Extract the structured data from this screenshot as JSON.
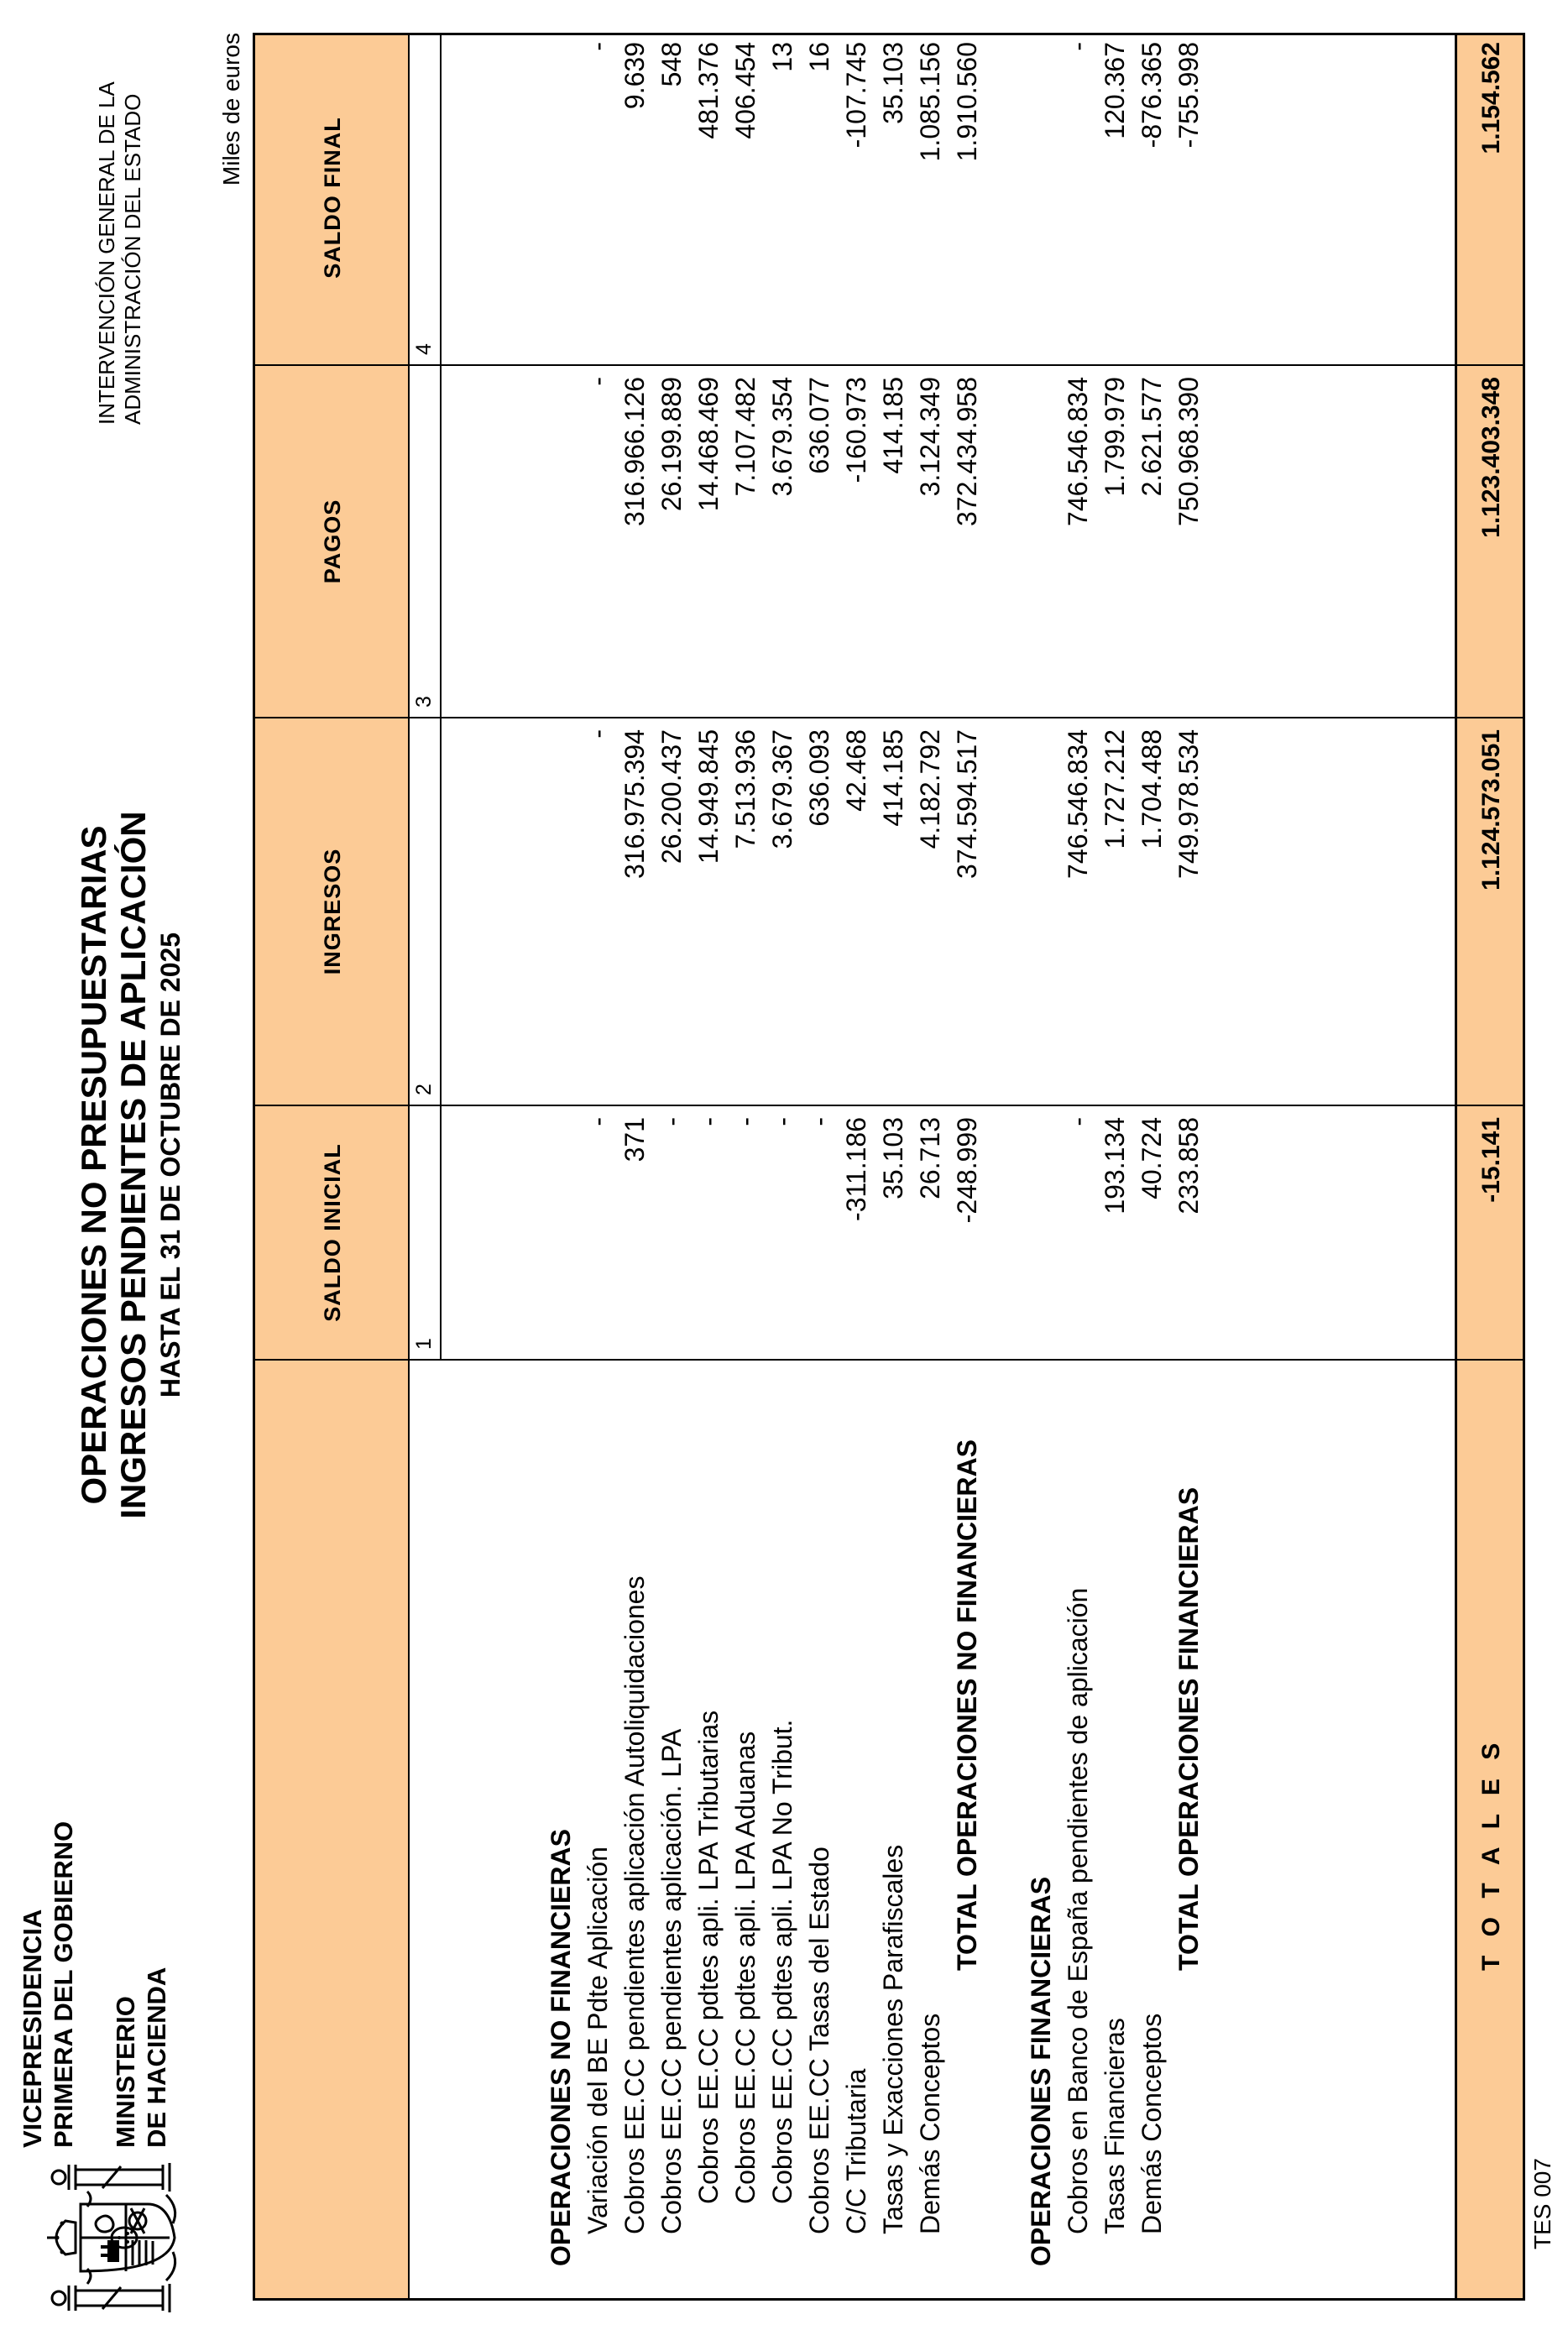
{
  "page": {
    "ministry": {
      "line1": "VICEPRESIDENCIA",
      "line2": "PRIMERA DEL GOBIERNO",
      "line3": "MINISTERIO",
      "line4": "DE HACIENDA"
    },
    "igae": {
      "line1": "INTERVENCIÓN GENERAL DE LA",
      "line2": "ADMINISTRACIÓN DEL ESTADO"
    },
    "title": {
      "line1": "OPERACIONES NO PRESUPUESTARIAS",
      "line2": "INGRESOS PENDIENTES DE APLICACIÓN",
      "line3": "HASTA EL 31 DE OCTUBRE DE 2025"
    },
    "units_note": "Miles de euros",
    "form_code": "TES 007"
  },
  "colors": {
    "header_fill": "#fccb96",
    "border": "#000000"
  },
  "table": {
    "columns": [
      {
        "label": "SALDO INICIAL",
        "num": "1"
      },
      {
        "label": "INGRESOS",
        "num": "2"
      },
      {
        "label": "PAGOS",
        "num": "3"
      },
      {
        "label": "SALDO FINAL",
        "num": "4"
      }
    ],
    "rows": [
      {
        "label": "OPERACIONES NO FINANCIERAS",
        "style": "section",
        "values": [
          "",
          "",
          "",
          ""
        ]
      },
      {
        "label": "Variación del BE Pdte Aplicación",
        "style": "item",
        "values": [
          "-",
          "-",
          "-",
          "-"
        ]
      },
      {
        "label": "Cobros EE.CC pendientes aplicación Autoliquidaciones",
        "style": "item",
        "values": [
          "371",
          "316.975.394",
          "316.966.126",
          "9.639"
        ]
      },
      {
        "label": "Cobros EE.CC pendientes aplicación. LPA",
        "style": "item",
        "values": [
          "-",
          "26.200.437",
          "26.199.889",
          "548"
        ]
      },
      {
        "label": "Cobros EE.CC pdtes apli. LPA Tributarias",
        "style": "sub",
        "values": [
          "-",
          "14.949.845",
          "14.468.469",
          "481.376"
        ]
      },
      {
        "label": "Cobros EE.CC pdtes apli. LPA Aduanas",
        "style": "sub",
        "values": [
          "-",
          "7.513.936",
          "7.107.482",
          "406.454"
        ]
      },
      {
        "label": "Cobros EE.CC pdtes apli. LPA No Tribut.",
        "style": "sub",
        "values": [
          "-",
          "3.679.367",
          "3.679.354",
          "13"
        ]
      },
      {
        "label": "Cobros EE.CC Tasas del Estado",
        "style": "item",
        "values": [
          "-",
          "636.093",
          "636.077",
          "16"
        ]
      },
      {
        "label": "C/C Tributaria",
        "style": "item",
        "values": [
          "-311.186",
          "42.468",
          "-160.973",
          "-107.745"
        ]
      },
      {
        "label": "Tasas y Exacciones Parafiscales",
        "style": "item",
        "values": [
          "35.103",
          "414.185",
          "414.185",
          "35.103"
        ]
      },
      {
        "label": "Demás Conceptos",
        "style": "item",
        "values": [
          "26.713",
          "4.182.792",
          "3.124.349",
          "1.085.156"
        ]
      },
      {
        "label": "TOTAL OPERACIONES NO FINANCIERAS",
        "style": "total",
        "values": [
          "-248.999",
          "374.594.517",
          "372.434.958",
          "1.910.560"
        ]
      },
      {
        "label": "",
        "style": "blank",
        "values": [
          "",
          "",
          "",
          ""
        ]
      },
      {
        "label": "OPERACIONES FINANCIERAS",
        "style": "section",
        "values": [
          "",
          "",
          "",
          ""
        ]
      },
      {
        "label": "Cobros en Banco de España pendientes de aplicación",
        "style": "item",
        "values": [
          "-",
          "746.546.834",
          "746.546.834",
          "-"
        ]
      },
      {
        "label": "Tasas Financieras",
        "style": "item",
        "values": [
          "193.134",
          "1.727.212",
          "1.799.979",
          "120.367"
        ]
      },
      {
        "label": "Demás Conceptos",
        "style": "item",
        "values": [
          "40.724",
          "1.704.488",
          "2.621.577",
          "-876.365"
        ]
      },
      {
        "label": "TOTAL OPERACIONES FINANCIERAS",
        "style": "total",
        "values": [
          "233.858",
          "749.978.534",
          "750.968.390",
          "-755.998"
        ]
      }
    ],
    "totals": {
      "label": "T O T A L E S",
      "saldo_inicial": "-15.141",
      "ingresos": "1.124.573.051",
      "pagos": "1.123.403.348",
      "saldo_final": "1.154.562"
    }
  }
}
